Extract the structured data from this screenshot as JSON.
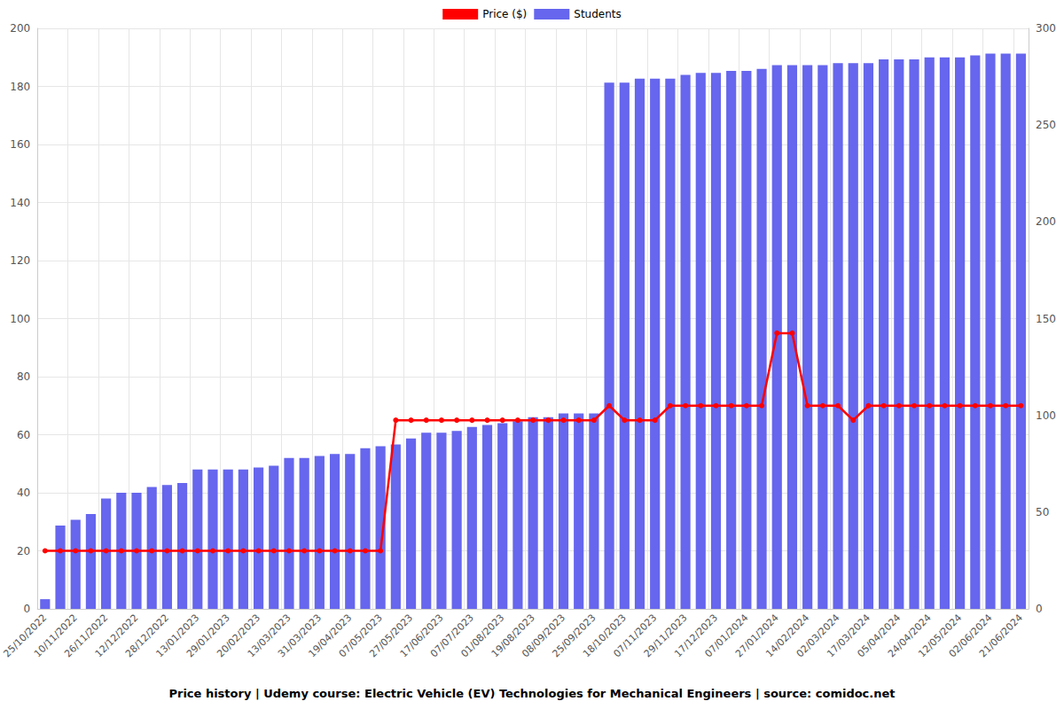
{
  "chart_data": {
    "type": "bar",
    "title": "Price history | Udemy course: Electric Vehicle (EV) Technologies for Mechanical Engineers | source: comidoc.net",
    "categories": [
      "25/10/2022",
      null,
      "10/11/2022",
      null,
      "26/11/2022",
      null,
      "12/12/2022",
      null,
      "28/12/2022",
      null,
      "13/01/2023",
      null,
      "29/01/2023",
      null,
      "20/02/2023",
      null,
      "13/03/2023",
      null,
      "31/03/2023",
      null,
      "19/04/2023",
      null,
      "07/05/2023",
      null,
      "27/05/2023",
      null,
      "17/06/2023",
      null,
      "07/07/2023",
      null,
      "01/08/2023",
      null,
      "19/08/2023",
      null,
      "08/09/2023",
      null,
      "25/09/2023",
      null,
      "18/10/2023",
      null,
      "07/11/2023",
      null,
      "29/11/2023",
      null,
      "17/12/2023",
      null,
      "07/01/2024",
      null,
      "27/01/2024",
      null,
      "14/02/2024",
      null,
      "02/03/2024",
      null,
      "17/03/2024",
      null,
      "05/04/2024",
      null,
      "24/04/2024",
      null,
      "12/05/2024",
      null,
      "02/06/2024",
      null,
      "21/06/2024"
    ],
    "series": [
      {
        "name": "Price ($)",
        "type": "line",
        "color": "#ff0000",
        "marker": "circle",
        "line_style": "solid",
        "axis": "y",
        "values": [
          20,
          20,
          20,
          20,
          20,
          20,
          20,
          20,
          20,
          20,
          20,
          20,
          20,
          20,
          20,
          20,
          20,
          20,
          20,
          20,
          20,
          20,
          20,
          65,
          65,
          65,
          65,
          65,
          65,
          65,
          65,
          65,
          65,
          65,
          65,
          65,
          65,
          70,
          65,
          65,
          65,
          70,
          70,
          70,
          70,
          70,
          70,
          70,
          95,
          95,
          70,
          70,
          70,
          65,
          70,
          70,
          70,
          70,
          70,
          70,
          70,
          70,
          70,
          70,
          70
        ]
      },
      {
        "name": "Students",
        "type": "bar",
        "color": "#6666ee",
        "axis": "y2",
        "values": [
          5,
          43,
          46,
          49,
          57,
          60,
          60,
          63,
          64,
          65,
          72,
          72,
          72,
          72,
          73,
          74,
          78,
          78,
          79,
          80,
          80,
          83,
          84,
          85,
          88,
          91,
          91,
          92,
          94,
          95,
          96,
          97,
          99,
          99,
          101,
          101,
          101,
          272,
          272,
          274,
          274,
          274,
          276,
          277,
          277,
          278,
          278,
          279,
          281,
          281,
          281,
          281,
          282,
          282,
          282,
          284,
          284,
          284,
          285,
          285,
          285,
          286,
          287,
          287,
          287
        ]
      }
    ],
    "ylim": [
      0,
      200
    ],
    "yticks": [
      0,
      20,
      40,
      60,
      80,
      100,
      120,
      140,
      160,
      180,
      200
    ],
    "y2lim": [
      0,
      300
    ],
    "y2ticks": [
      0,
      50,
      100,
      150,
      200,
      250,
      300
    ],
    "grid": true,
    "legend": "top"
  }
}
